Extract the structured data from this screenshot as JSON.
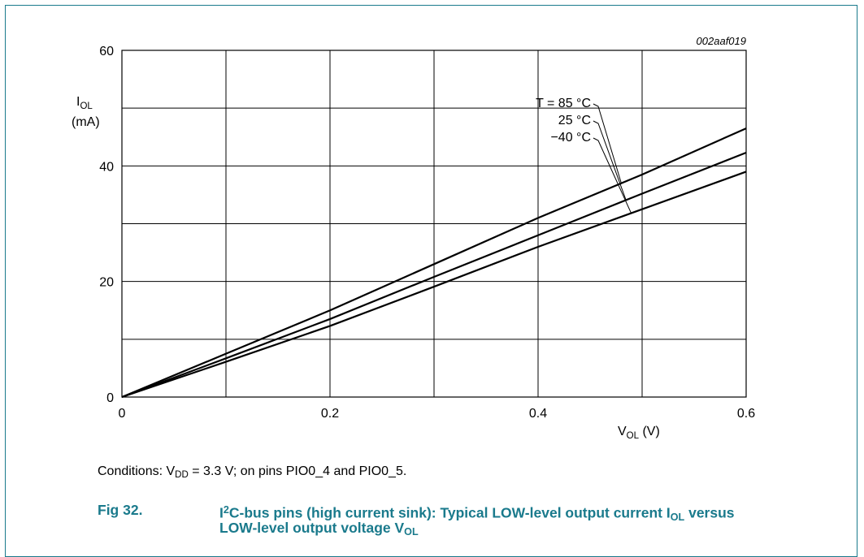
{
  "chart_data": {
    "type": "line",
    "figure_id": "002aaf019",
    "x": [
      0,
      0.1,
      0.2,
      0.3,
      0.4,
      0.5,
      0.6
    ],
    "xlim": [
      0,
      0.6
    ],
    "ylim": [
      0,
      60
    ],
    "x_ticks": [
      "0",
      "0.2",
      "0.4",
      "0.6"
    ],
    "y_ticks": [
      "0",
      "20",
      "40",
      "60"
    ],
    "xlabel": {
      "main": "V",
      "sub": "OL",
      "unit": " (V)"
    },
    "ylabel": {
      "main": "I",
      "sub": "OL",
      "unit": "(mA)"
    },
    "grid": true,
    "series": [
      {
        "name": "T = 85 °C",
        "values": [
          0,
          7.5,
          15,
          23,
          31,
          38.5,
          46.5
        ]
      },
      {
        "name": "25 °C",
        "values": [
          0,
          6.7,
          13.5,
          20.8,
          28,
          35.2,
          42.3
        ]
      },
      {
        "name": "−40 °C",
        "values": [
          0,
          6.1,
          12.3,
          19.1,
          26,
          32.5,
          39
        ]
      }
    ],
    "series_label_points": [
      0.48,
      0.4845,
      0.4895
    ]
  },
  "conditions": {
    "prefix": "Conditions: V",
    "sub": "DD",
    "suffix": " = 3.3 V; on pins PIO0_4 and PIO0_5."
  },
  "caption": {
    "number": "Fig 32.",
    "l1_a": "I",
    "l1_sup": "2",
    "l1_b": "C-bus pins (high current sink): Typical LOW-level output current I",
    "l1_sub": "OL",
    "l1_c": " versus",
    "l2_a": "LOW-level output voltage V",
    "l2_sub": "OL"
  }
}
